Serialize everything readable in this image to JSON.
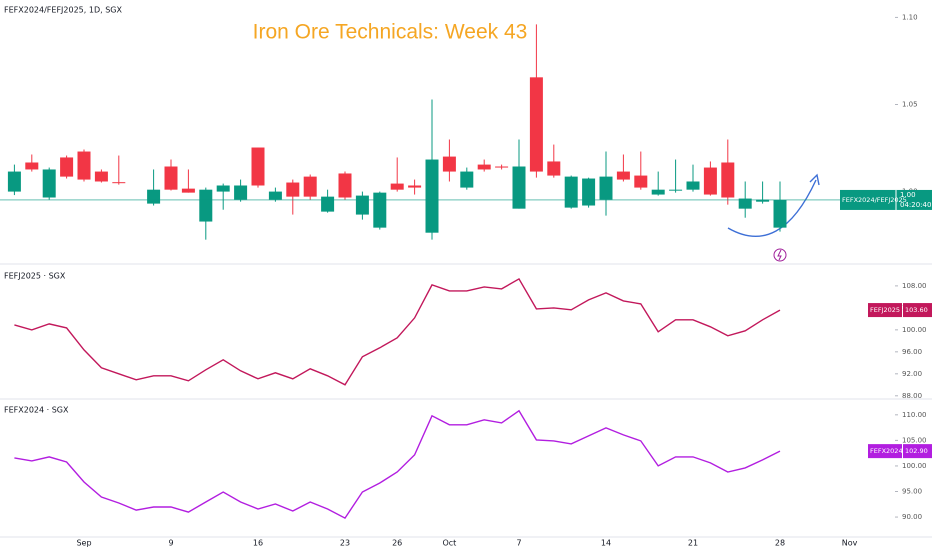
{
  "chart_data": [
    {
      "type": "candlestick",
      "title": "Iron Ore Technicals: Week 43",
      "symbol": "FEFX2024/FEFJ2025, 1D, SGX",
      "categories": [
        null,
        null,
        null,
        null,
        "Sep",
        null,
        null,
        null,
        null,
        "9",
        null,
        null,
        null,
        null,
        "16",
        null,
        null,
        null,
        null,
        "23",
        null,
        null,
        "26",
        null,
        null,
        "Oct",
        null,
        null,
        null,
        "7",
        null,
        null,
        null,
        null,
        "14",
        null,
        null,
        null,
        null,
        "21",
        null,
        null,
        null,
        null,
        "28",
        null,
        null,
        null,
        "Nov"
      ],
      "open": [
        1.0,
        1.0167,
        0.9966,
        1.0196,
        1.023,
        1.0115,
        1.0054,
        null,
        0.9931,
        1.0144,
        1.0017,
        0.9828,
        1.0,
        0.9954,
        1.0253,
        0.9954,
        1.0052,
        1.0086,
        0.9885,
        1.0104,
        0.9868,
        0.9793,
        1.0046,
        1.0035,
        0.9764,
        1.0201,
        1.0023,
        1.0155,
        1.0144,
        0.9902,
        1.0656,
        1.0173,
        0.9908,
        0.992,
        0.9954,
        1.0115,
        1.0092,
        0.9983,
        1.0006,
        1.0011,
        1.0138,
        1.0167,
        0.9902,
        0.9942,
        0.9793,
        null,
        null,
        null,
        null
      ],
      "high": [
        1.0155,
        1.0213,
        1.0138,
        1.0207,
        1.0242,
        1.0127,
        1.0207,
        null,
        1.0127,
        1.0184,
        1.0127,
        1.0023,
        1.0046,
        1.0069,
        1.0253,
        1.0023,
        1.0069,
        1.0098,
        1.0011,
        1.0115,
        1.0,
        1.0,
        1.0196,
        1.0069,
        1.0529,
        1.0299,
        1.0138,
        1.0184,
        1.0155,
        1.0299,
        1.096,
        1.027,
        1.0092,
        1.008,
        1.023,
        1.0213,
        1.023,
        1.0115,
        1.0184,
        1.0155,
        1.0173,
        1.0299,
        1.0058,
        1.0058,
        1.0058,
        null,
        null,
        null,
        null
      ],
      "low": [
        0.998,
        1.0115,
        0.9954,
        1.0075,
        1.0058,
        1.0052,
        1.004,
        null,
        0.992,
        1.0006,
        0.9994,
        0.9724,
        0.9896,
        0.9942,
        1.0023,
        0.9942,
        0.9868,
        0.9954,
        0.9879,
        0.9954,
        0.9839,
        0.9782,
        1.0,
        0.9983,
        0.9724,
        1.0058,
        1.0011,
        1.0115,
        1.0127,
        0.9902,
        1.008,
        1.008,
        0.9902,
        0.9908,
        0.9862,
        1.0058,
        1.0011,
        0.9977,
        0.9994,
        1.0,
        0.9977,
        0.9925,
        0.985,
        0.9931,
        0.977,
        null,
        null,
        null,
        null
      ],
      "close": [
        1.0115,
        1.0127,
        1.0127,
        1.0086,
        1.0069,
        1.0058,
        1.005,
        null,
        1.0011,
        1.0011,
        0.9994,
        1.0011,
        1.0035,
        1.0035,
        1.0035,
        1.0,
        0.9971,
        0.9971,
        0.9971,
        0.9966,
        0.9977,
        0.9994,
        1.0011,
        1.0023,
        1.0184,
        1.0115,
        1.0115,
        1.0127,
        1.0138,
        1.0144,
        1.0115,
        1.0092,
        1.0086,
        1.0075,
        1.0086,
        1.0069,
        1.0023,
        1.0011,
        1.0011,
        1.0058,
        0.9983,
        0.9966,
        0.996,
        0.9954,
        0.9952,
        null,
        null,
        null,
        null
      ],
      "up_color": "#089981",
      "down_color": "#f23645",
      "last_label": {
        "name": "FEFX2024/FEFJ2025",
        "price": "1.00",
        "countdown": "04:20:40"
      },
      "ylim": [
        0.959,
        1.11
      ],
      "yticks": [
        {
          "value": 1.0,
          "label": "1.00"
        },
        {
          "value": 1.05,
          "label": "1.05"
        },
        {
          "value": 1.1,
          "label": "1.10"
        }
      ],
      "grid": false
    },
    {
      "type": "line",
      "title": "FEFJ2025 · SGX",
      "series": [
        {
          "name": "FEFJ2025",
          "color": "#c2185b",
          "last_label": "103.60",
          "values": [
            100.91,
            100,
            101.09,
            100.36,
            96.36,
            93.09,
            92.0,
            90.91,
            91.64,
            91.64,
            90.73,
            92.73,
            94.55,
            92.55,
            91.09,
            92.18,
            91.09,
            92.91,
            91.64,
            90.0,
            95.09,
            96.73,
            98.55,
            102.18,
            108.18,
            107.09,
            107.09,
            107.82,
            107.45,
            109.27,
            103.82,
            104.0,
            103.64,
            105.45,
            106.73,
            105.27,
            104.73,
            99.64,
            101.82,
            101.82,
            100.55,
            98.91,
            99.82,
            101.82,
            103.6,
            null,
            null,
            null,
            null
          ]
        }
      ],
      "ylim": [
        87.6,
        111.8
      ],
      "yticks": [
        {
          "value": 88,
          "label": "88.00"
        },
        {
          "value": 92,
          "label": "92.00"
        },
        {
          "value": 96,
          "label": "96.00"
        },
        {
          "value": 100,
          "label": "100.00"
        },
        {
          "value": 104,
          "label": "104.00"
        },
        {
          "value": 108,
          "label": "108.00"
        }
      ],
      "grid": false
    },
    {
      "type": "line",
      "title": "FEFX2024 · SGX",
      "series": [
        {
          "name": "FEFX2024",
          "color": "#b21ee0",
          "last_label": "102.90",
          "values": [
            101.57,
            100.98,
            101.76,
            100.78,
            96.86,
            93.92,
            92.75,
            91.37,
            91.96,
            91.96,
            90.98,
            92.94,
            94.9,
            92.94,
            91.57,
            92.55,
            91.18,
            92.94,
            91.57,
            89.8,
            94.9,
            96.67,
            98.82,
            102.16,
            109.8,
            108.04,
            108.04,
            109.02,
            108.43,
            110.78,
            105.1,
            104.9,
            104.31,
            105.88,
            107.45,
            106.08,
            104.9,
            100.0,
            101.76,
            101.76,
            100.59,
            98.82,
            99.61,
            101.18,
            102.9,
            null,
            null,
            null,
            null
          ]
        }
      ],
      "ylim": [
        86.1,
        112.9
      ],
      "yticks": [
        {
          "value": 90,
          "label": "90.00"
        },
        {
          "value": 95,
          "label": "95.00"
        },
        {
          "value": 100,
          "label": "100.00"
        },
        {
          "value": 105,
          "label": "105.00"
        },
        {
          "value": 110,
          "label": "110.00"
        }
      ],
      "grid": false
    }
  ]
}
